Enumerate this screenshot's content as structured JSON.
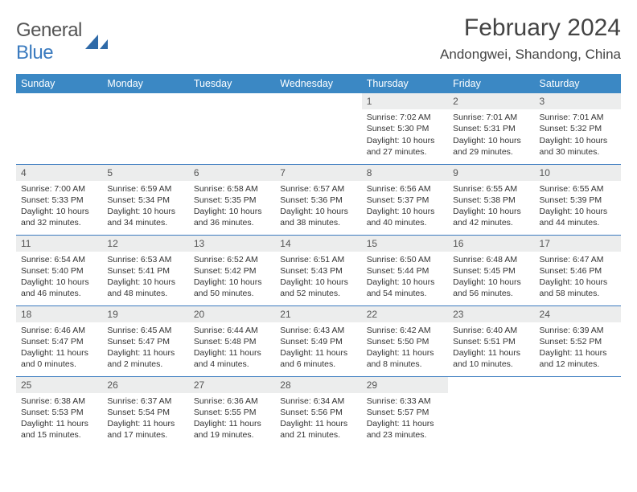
{
  "brand": {
    "general": "General",
    "blue": "Blue"
  },
  "title": "February 2024",
  "location": "Andongwei, Shandong, China",
  "colors": {
    "header_bg": "#3b88c4",
    "border": "#3b7bbf",
    "daynum_bg": "#eceded"
  },
  "weekdays": [
    "Sunday",
    "Monday",
    "Tuesday",
    "Wednesday",
    "Thursday",
    "Friday",
    "Saturday"
  ],
  "weeks": [
    [
      null,
      null,
      null,
      null,
      {
        "n": "1",
        "sr": "7:02 AM",
        "ss": "5:30 PM",
        "dl": "10 hours and 27 minutes."
      },
      {
        "n": "2",
        "sr": "7:01 AM",
        "ss": "5:31 PM",
        "dl": "10 hours and 29 minutes."
      },
      {
        "n": "3",
        "sr": "7:01 AM",
        "ss": "5:32 PM",
        "dl": "10 hours and 30 minutes."
      }
    ],
    [
      {
        "n": "4",
        "sr": "7:00 AM",
        "ss": "5:33 PM",
        "dl": "10 hours and 32 minutes."
      },
      {
        "n": "5",
        "sr": "6:59 AM",
        "ss": "5:34 PM",
        "dl": "10 hours and 34 minutes."
      },
      {
        "n": "6",
        "sr": "6:58 AM",
        "ss": "5:35 PM",
        "dl": "10 hours and 36 minutes."
      },
      {
        "n": "7",
        "sr": "6:57 AM",
        "ss": "5:36 PM",
        "dl": "10 hours and 38 minutes."
      },
      {
        "n": "8",
        "sr": "6:56 AM",
        "ss": "5:37 PM",
        "dl": "10 hours and 40 minutes."
      },
      {
        "n": "9",
        "sr": "6:55 AM",
        "ss": "5:38 PM",
        "dl": "10 hours and 42 minutes."
      },
      {
        "n": "10",
        "sr": "6:55 AM",
        "ss": "5:39 PM",
        "dl": "10 hours and 44 minutes."
      }
    ],
    [
      {
        "n": "11",
        "sr": "6:54 AM",
        "ss": "5:40 PM",
        "dl": "10 hours and 46 minutes."
      },
      {
        "n": "12",
        "sr": "6:53 AM",
        "ss": "5:41 PM",
        "dl": "10 hours and 48 minutes."
      },
      {
        "n": "13",
        "sr": "6:52 AM",
        "ss": "5:42 PM",
        "dl": "10 hours and 50 minutes."
      },
      {
        "n": "14",
        "sr": "6:51 AM",
        "ss": "5:43 PM",
        "dl": "10 hours and 52 minutes."
      },
      {
        "n": "15",
        "sr": "6:50 AM",
        "ss": "5:44 PM",
        "dl": "10 hours and 54 minutes."
      },
      {
        "n": "16",
        "sr": "6:48 AM",
        "ss": "5:45 PM",
        "dl": "10 hours and 56 minutes."
      },
      {
        "n": "17",
        "sr": "6:47 AM",
        "ss": "5:46 PM",
        "dl": "10 hours and 58 minutes."
      }
    ],
    [
      {
        "n": "18",
        "sr": "6:46 AM",
        "ss": "5:47 PM",
        "dl": "11 hours and 0 minutes."
      },
      {
        "n": "19",
        "sr": "6:45 AM",
        "ss": "5:47 PM",
        "dl": "11 hours and 2 minutes."
      },
      {
        "n": "20",
        "sr": "6:44 AM",
        "ss": "5:48 PM",
        "dl": "11 hours and 4 minutes."
      },
      {
        "n": "21",
        "sr": "6:43 AM",
        "ss": "5:49 PM",
        "dl": "11 hours and 6 minutes."
      },
      {
        "n": "22",
        "sr": "6:42 AM",
        "ss": "5:50 PM",
        "dl": "11 hours and 8 minutes."
      },
      {
        "n": "23",
        "sr": "6:40 AM",
        "ss": "5:51 PM",
        "dl": "11 hours and 10 minutes."
      },
      {
        "n": "24",
        "sr": "6:39 AM",
        "ss": "5:52 PM",
        "dl": "11 hours and 12 minutes."
      }
    ],
    [
      {
        "n": "25",
        "sr": "6:38 AM",
        "ss": "5:53 PM",
        "dl": "11 hours and 15 minutes."
      },
      {
        "n": "26",
        "sr": "6:37 AM",
        "ss": "5:54 PM",
        "dl": "11 hours and 17 minutes."
      },
      {
        "n": "27",
        "sr": "6:36 AM",
        "ss": "5:55 PM",
        "dl": "11 hours and 19 minutes."
      },
      {
        "n": "28",
        "sr": "6:34 AM",
        "ss": "5:56 PM",
        "dl": "11 hours and 21 minutes."
      },
      {
        "n": "29",
        "sr": "6:33 AM",
        "ss": "5:57 PM",
        "dl": "11 hours and 23 minutes."
      },
      null,
      null
    ]
  ],
  "labels": {
    "sunrise": "Sunrise: ",
    "sunset": "Sunset: ",
    "daylight": "Daylight: "
  }
}
